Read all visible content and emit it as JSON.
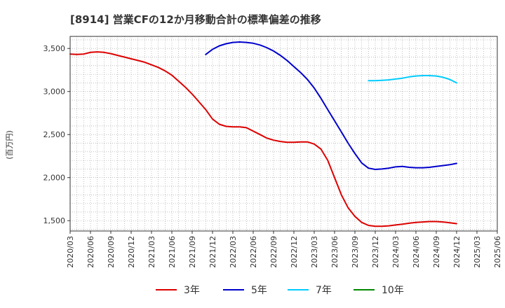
{
  "chart_data": {
    "type": "line",
    "title": "[8914]  営業CFの12か月移動合計の標準偏差の推移",
    "ylabel": "(百万円)",
    "xlabel": "",
    "ylim": [
      1380,
      3640
    ],
    "y_ticks": [
      1500,
      2000,
      2500,
      3000,
      3500
    ],
    "y_tick_labels": [
      "1,500",
      "2,000",
      "2,500",
      "3,000",
      "3,500"
    ],
    "x_ticks": [
      "2020/03",
      "2020/06",
      "2020/09",
      "2020/12",
      "2021/03",
      "2021/06",
      "2021/09",
      "2021/12",
      "2022/03",
      "2022/06",
      "2022/09",
      "2022/12",
      "2023/03",
      "2023/06",
      "2023/09",
      "2023/12",
      "2024/03",
      "2024/06",
      "2024/09",
      "2024/12",
      "2025/03",
      "2025/06"
    ],
    "grid": true,
    "legend_position": "bottom",
    "series": [
      {
        "name": "3年",
        "color": "#dd0000",
        "x": [
          "2020/03",
          "2020/04",
          "2020/05",
          "2020/06",
          "2020/07",
          "2020/08",
          "2020/09",
          "2020/10",
          "2020/11",
          "2020/12",
          "2021/01",
          "2021/02",
          "2021/03",
          "2021/04",
          "2021/05",
          "2021/06",
          "2021/07",
          "2021/08",
          "2021/09",
          "2021/10",
          "2021/11",
          "2021/12",
          "2022/01",
          "2022/02",
          "2022/03",
          "2022/04",
          "2022/05",
          "2022/06",
          "2022/07",
          "2022/08",
          "2022/09",
          "2022/10",
          "2022/11",
          "2022/12",
          "2023/01",
          "2023/02",
          "2023/03",
          "2023/04",
          "2023/05",
          "2023/06",
          "2023/07",
          "2023/08",
          "2023/09",
          "2023/10",
          "2023/11",
          "2023/12",
          "2024/01",
          "2024/02",
          "2024/03",
          "2024/04",
          "2024/05",
          "2024/06",
          "2024/07",
          "2024/08",
          "2024/09",
          "2024/10",
          "2024/11",
          "2024/12"
        ],
        "values": [
          3435,
          3430,
          3435,
          3455,
          3460,
          3455,
          3440,
          3420,
          3400,
          3380,
          3360,
          3340,
          3310,
          3280,
          3240,
          3190,
          3120,
          3050,
          2970,
          2880,
          2790,
          2680,
          2620,
          2595,
          2590,
          2590,
          2580,
          2540,
          2500,
          2460,
          2435,
          2420,
          2410,
          2410,
          2415,
          2415,
          2390,
          2330,
          2200,
          2000,
          1800,
          1650,
          1550,
          1480,
          1445,
          1435,
          1435,
          1440,
          1450,
          1460,
          1470,
          1480,
          1485,
          1490,
          1490,
          1485,
          1475,
          1465
        ]
      },
      {
        "name": "5年",
        "color": "#0000cc",
        "x": [
          "2021/11",
          "2021/12",
          "2022/01",
          "2022/02",
          "2022/03",
          "2022/04",
          "2022/05",
          "2022/06",
          "2022/07",
          "2022/08",
          "2022/09",
          "2022/10",
          "2022/11",
          "2022/12",
          "2023/01",
          "2023/02",
          "2023/03",
          "2023/04",
          "2023/05",
          "2023/06",
          "2023/07",
          "2023/08",
          "2023/09",
          "2023/10",
          "2023/11",
          "2023/12",
          "2024/01",
          "2024/02",
          "2024/03",
          "2024/04",
          "2024/05",
          "2024/06",
          "2024/07",
          "2024/08",
          "2024/09",
          "2024/10",
          "2024/11",
          "2024/12"
        ],
        "values": [
          3430,
          3490,
          3530,
          3555,
          3570,
          3575,
          3570,
          3560,
          3540,
          3510,
          3470,
          3420,
          3360,
          3290,
          3220,
          3140,
          3040,
          2920,
          2790,
          2660,
          2530,
          2400,
          2280,
          2170,
          2110,
          2095,
          2100,
          2110,
          2125,
          2130,
          2120,
          2115,
          2115,
          2120,
          2130,
          2140,
          2150,
          2165
        ]
      },
      {
        "name": "7年",
        "color": "#00ccff",
        "x": [
          "2023/11",
          "2023/12",
          "2024/01",
          "2024/02",
          "2024/03",
          "2024/04",
          "2024/05",
          "2024/06",
          "2024/07",
          "2024/08",
          "2024/09",
          "2024/10",
          "2024/11",
          "2024/12"
        ],
        "values": [
          3125,
          3125,
          3130,
          3135,
          3145,
          3155,
          3170,
          3180,
          3185,
          3185,
          3180,
          3165,
          3140,
          3100
        ]
      },
      {
        "name": "10年",
        "color": "#008800",
        "x": [],
        "values": []
      }
    ]
  }
}
